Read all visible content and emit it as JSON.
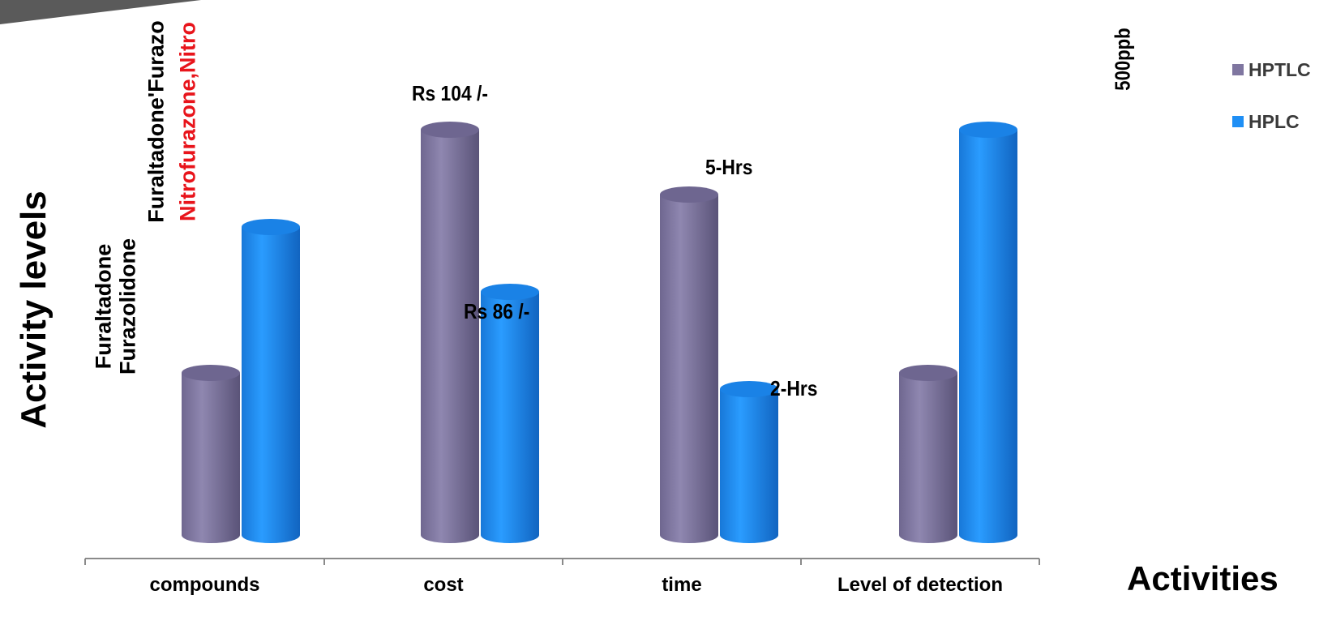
{
  "chart_data": {
    "type": "bar",
    "categories": [
      "compounds",
      "cost",
      "time",
      "Level of detection"
    ],
    "series": [
      {
        "name": "HPTLC",
        "color": "#7f76a0",
        "values": [
          2,
          5,
          4.2,
          2
        ]
      },
      {
        "name": "HPLC",
        "color": "#1f8ff5",
        "values": [
          3.8,
          3,
          1.8,
          5
        ]
      }
    ],
    "xlabel": "Activities",
    "ylabel": "Activity levels",
    "grid": false,
    "legend_position": "top-right",
    "data_labels": {
      "cost_hptlc": "Rs 104 /-",
      "cost_hplc": "Rs  86 /-",
      "time_hptlc": "5-Hrs",
      "time_hplc": "2-Hrs",
      "lod_note": "500ppb"
    },
    "compound_labels": {
      "line1": "Furaltadone",
      "line2": "Furazolidone",
      "line3": "Furaltadone'Furazo",
      "line4": "Nitrofurazone,Nitro"
    },
    "accent_colors": {
      "red_text": "#e8141b",
      "axis": "#8a8a8a",
      "corner": "#5a5a5a"
    }
  }
}
